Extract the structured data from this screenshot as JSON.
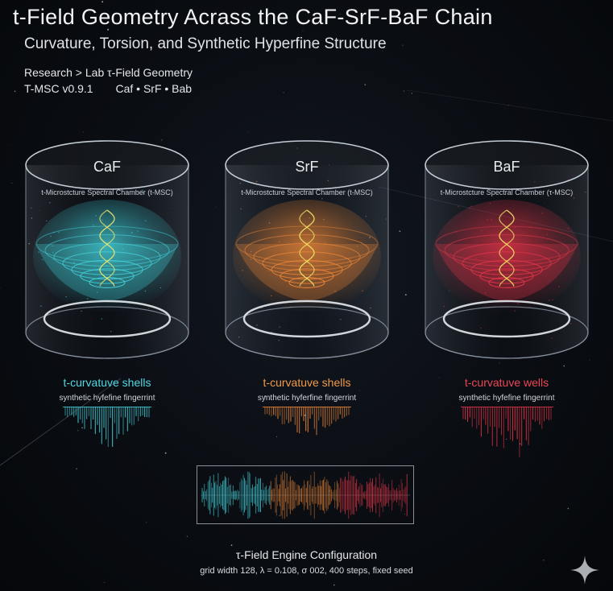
{
  "header": {
    "title": "t-Field Geometry Acrass the CaF-SrF-BaF Chain",
    "subtitle": "Curvature, Torsion, and Synthetic Hyperfine Structure",
    "breadcrumb": "Research > Lab τ-Field Geometry",
    "version": "T-MSC v0.9.1",
    "chain": "Caf • SrF • Bab"
  },
  "chambers": [
    {
      "label": "CaF",
      "chamber_label": "t-Microstcture Spectral Chamber (t-MSC)",
      "shell_label": "t-curvatuve shells",
      "fingerprint_label": "synthetic hyfefine fingerrint",
      "color": "#46d6e0"
    },
    {
      "label": "SrF",
      "chamber_label": "t-Microstcture Spectral Chamber (t-MSC)",
      "shell_label": "t-curvatuve shells",
      "fingerprint_label": "synthetic hyferfine fingerrint",
      "color": "#f08a3a"
    },
    {
      "label": "BaF",
      "chamber_label": "t-Microstcture Spectral Chamber (τ-MSC)",
      "shell_label": "t-curvatuve wells",
      "fingerprint_label": "synthetic hyfefine fingerrint",
      "color": "#e8374a"
    }
  ],
  "engine": {
    "title": "τ-Field Engine Configuration",
    "params": "grid width 128, λ = 0.108, σ 002, 400 steps, fixed seed"
  },
  "icons": {
    "corner": "sparkle-icon"
  }
}
